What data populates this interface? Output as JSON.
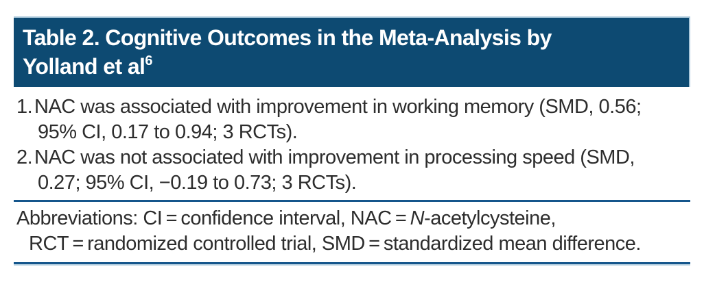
{
  "table": {
    "title": {
      "line1": "Table 2. Cognitive Outcomes in the Meta-Analysis by",
      "line2": "Yolland et al",
      "reference_superscript": "6"
    },
    "items": [
      {
        "number": "1.",
        "lines": [
          "NAC was associated with improvement in working memory (SMD, 0.56;",
          "95% CI, 0.17 to 0.94; 3 RCTs)."
        ]
      },
      {
        "number": "2.",
        "lines": [
          "NAC was not associated with improvement in processing speed (SMD,",
          "0.27; 95% CI, −0.19 to 0.73; 3 RCTs)."
        ]
      }
    ],
    "footnote": {
      "line1_pre_italic": "Abbreviations: CI = confidence interval, NAC = ",
      "line1_italic": "N",
      "line1_post_italic": "-acetylcysteine,",
      "line2": "RCT = randomized controlled trial, SMD = standardized mean difference."
    },
    "colors": {
      "header_background": "#0d4a72",
      "header_border": "#a9c7da",
      "rule": "#15568c",
      "text": "#2d2d2d"
    }
  }
}
